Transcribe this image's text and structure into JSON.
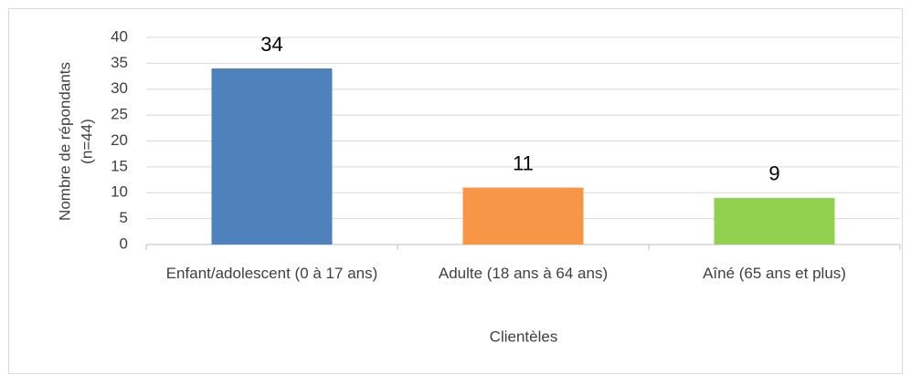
{
  "chart_data": {
    "type": "bar",
    "categories": [
      "Enfant/adolescent (0 à 17 ans)",
      "Adulte (18 ans à 64 ans)",
      "Aîné (65 ans et plus)"
    ],
    "values": [
      34,
      11,
      9
    ],
    "colors": [
      "#4f81bd",
      "#f79646",
      "#92d050"
    ],
    "xlabel": "Clientèles",
    "ylabel": [
      "Nombre de répondants",
      "(n=44)"
    ],
    "ylim": [
      0,
      40
    ],
    "yticks": [
      0,
      5,
      10,
      15,
      20,
      25,
      30,
      35,
      40
    ],
    "grid": true
  }
}
